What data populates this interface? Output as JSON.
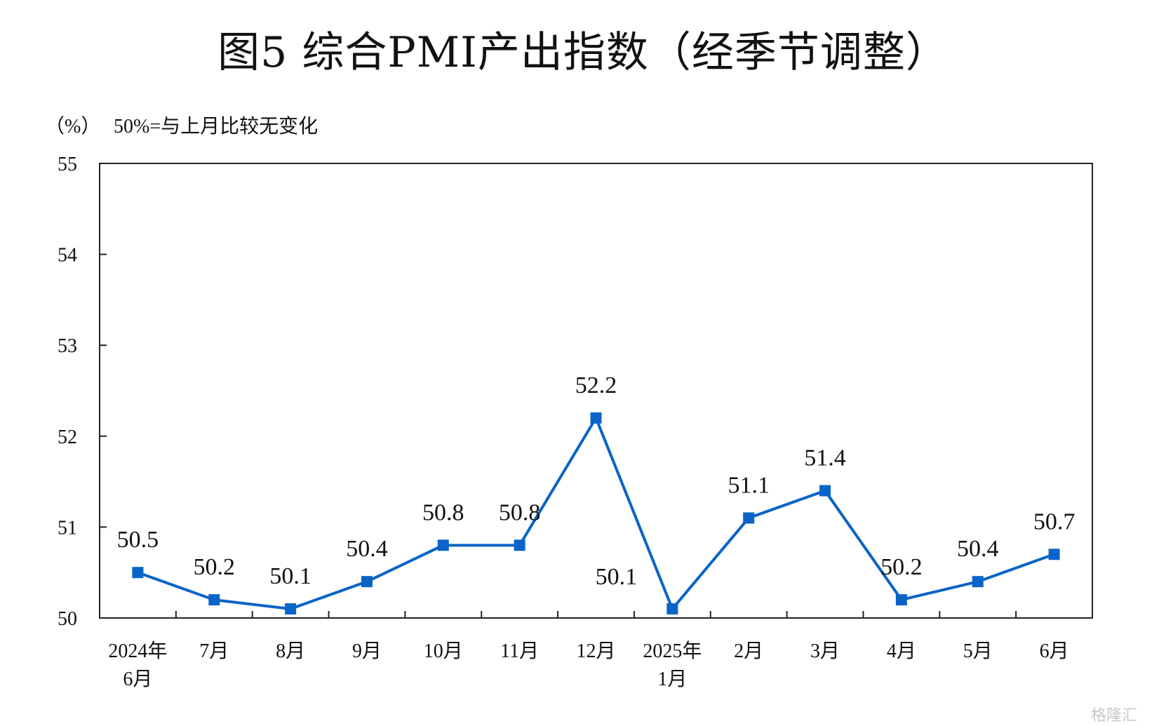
{
  "chart_data": {
    "type": "line",
    "title": "图5  综合PMI产出指数（经季节调整）",
    "unit_label": "（%）",
    "unit_note": "50%=与上月比较无变化",
    "xlabel": "",
    "ylabel": "",
    "categories": [
      [
        "2024年",
        "6月"
      ],
      [
        "7月"
      ],
      [
        "8月"
      ],
      [
        "9月"
      ],
      [
        "10月"
      ],
      [
        "11月"
      ],
      [
        "12月"
      ],
      [
        "2025年",
        "1月"
      ],
      [
        "2月"
      ],
      [
        "3月"
      ],
      [
        "4月"
      ],
      [
        "5月"
      ],
      [
        "6月"
      ]
    ],
    "series": [
      {
        "values": [
          50.5,
          50.2,
          50.1,
          50.4,
          50.8,
          50.8,
          52.2,
          50.1,
          51.1,
          51.4,
          50.2,
          50.4,
          50.7
        ],
        "data_labels": [
          "50.5",
          "50.2",
          "50.1",
          "50.4",
          "50.8",
          "50.8",
          "52.2",
          "50.1",
          "51.1",
          "51.4",
          "50.2",
          "50.4",
          "50.7"
        ],
        "color": "#0a64c8",
        "marker": "square"
      }
    ],
    "ylim": [
      50,
      55
    ],
    "yticks": [
      50,
      51,
      52,
      53,
      54,
      55
    ],
    "grid": false,
    "legend": "none"
  },
  "watermark": "格隆汇"
}
